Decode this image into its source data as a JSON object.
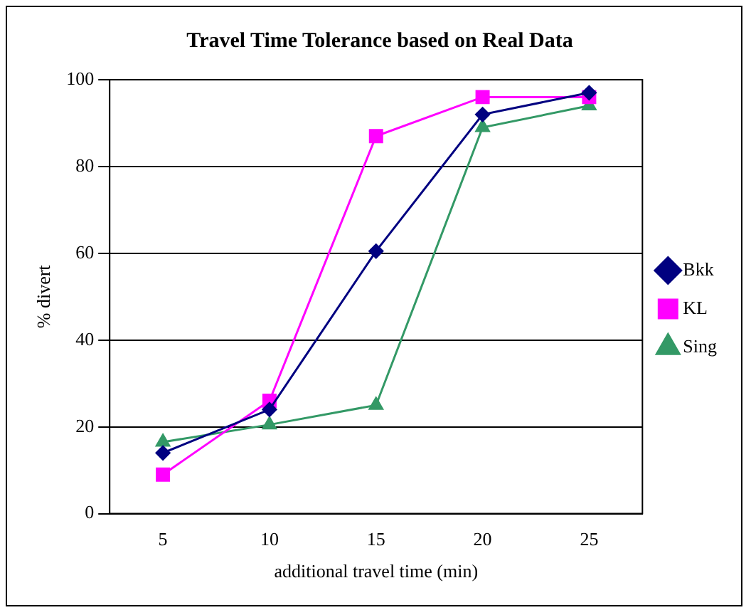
{
  "chart_data": {
    "type": "line",
    "title": "Travel Time Tolerance based on Real Data",
    "xlabel": "additional travel time (min)",
    "ylabel": "% divert",
    "categories": [
      "5",
      "10",
      "15",
      "20",
      "25"
    ],
    "series": [
      {
        "name": "Bkk",
        "color": "#000080",
        "marker": "diamond",
        "values": [
          14,
          24,
          60.5,
          92,
          97
        ]
      },
      {
        "name": "KL",
        "color": "#ff00ff",
        "marker": "square",
        "values": [
          9,
          26,
          87,
          96,
          96
        ]
      },
      {
        "name": "Sing",
        "color": "#339966",
        "marker": "triangle",
        "values": [
          16.5,
          20.5,
          25,
          89,
          94
        ]
      }
    ],
    "ylim": [
      0,
      100
    ],
    "yticks": [
      0,
      20,
      40,
      60,
      80,
      100
    ],
    "grid": "y",
    "legend": "right"
  }
}
